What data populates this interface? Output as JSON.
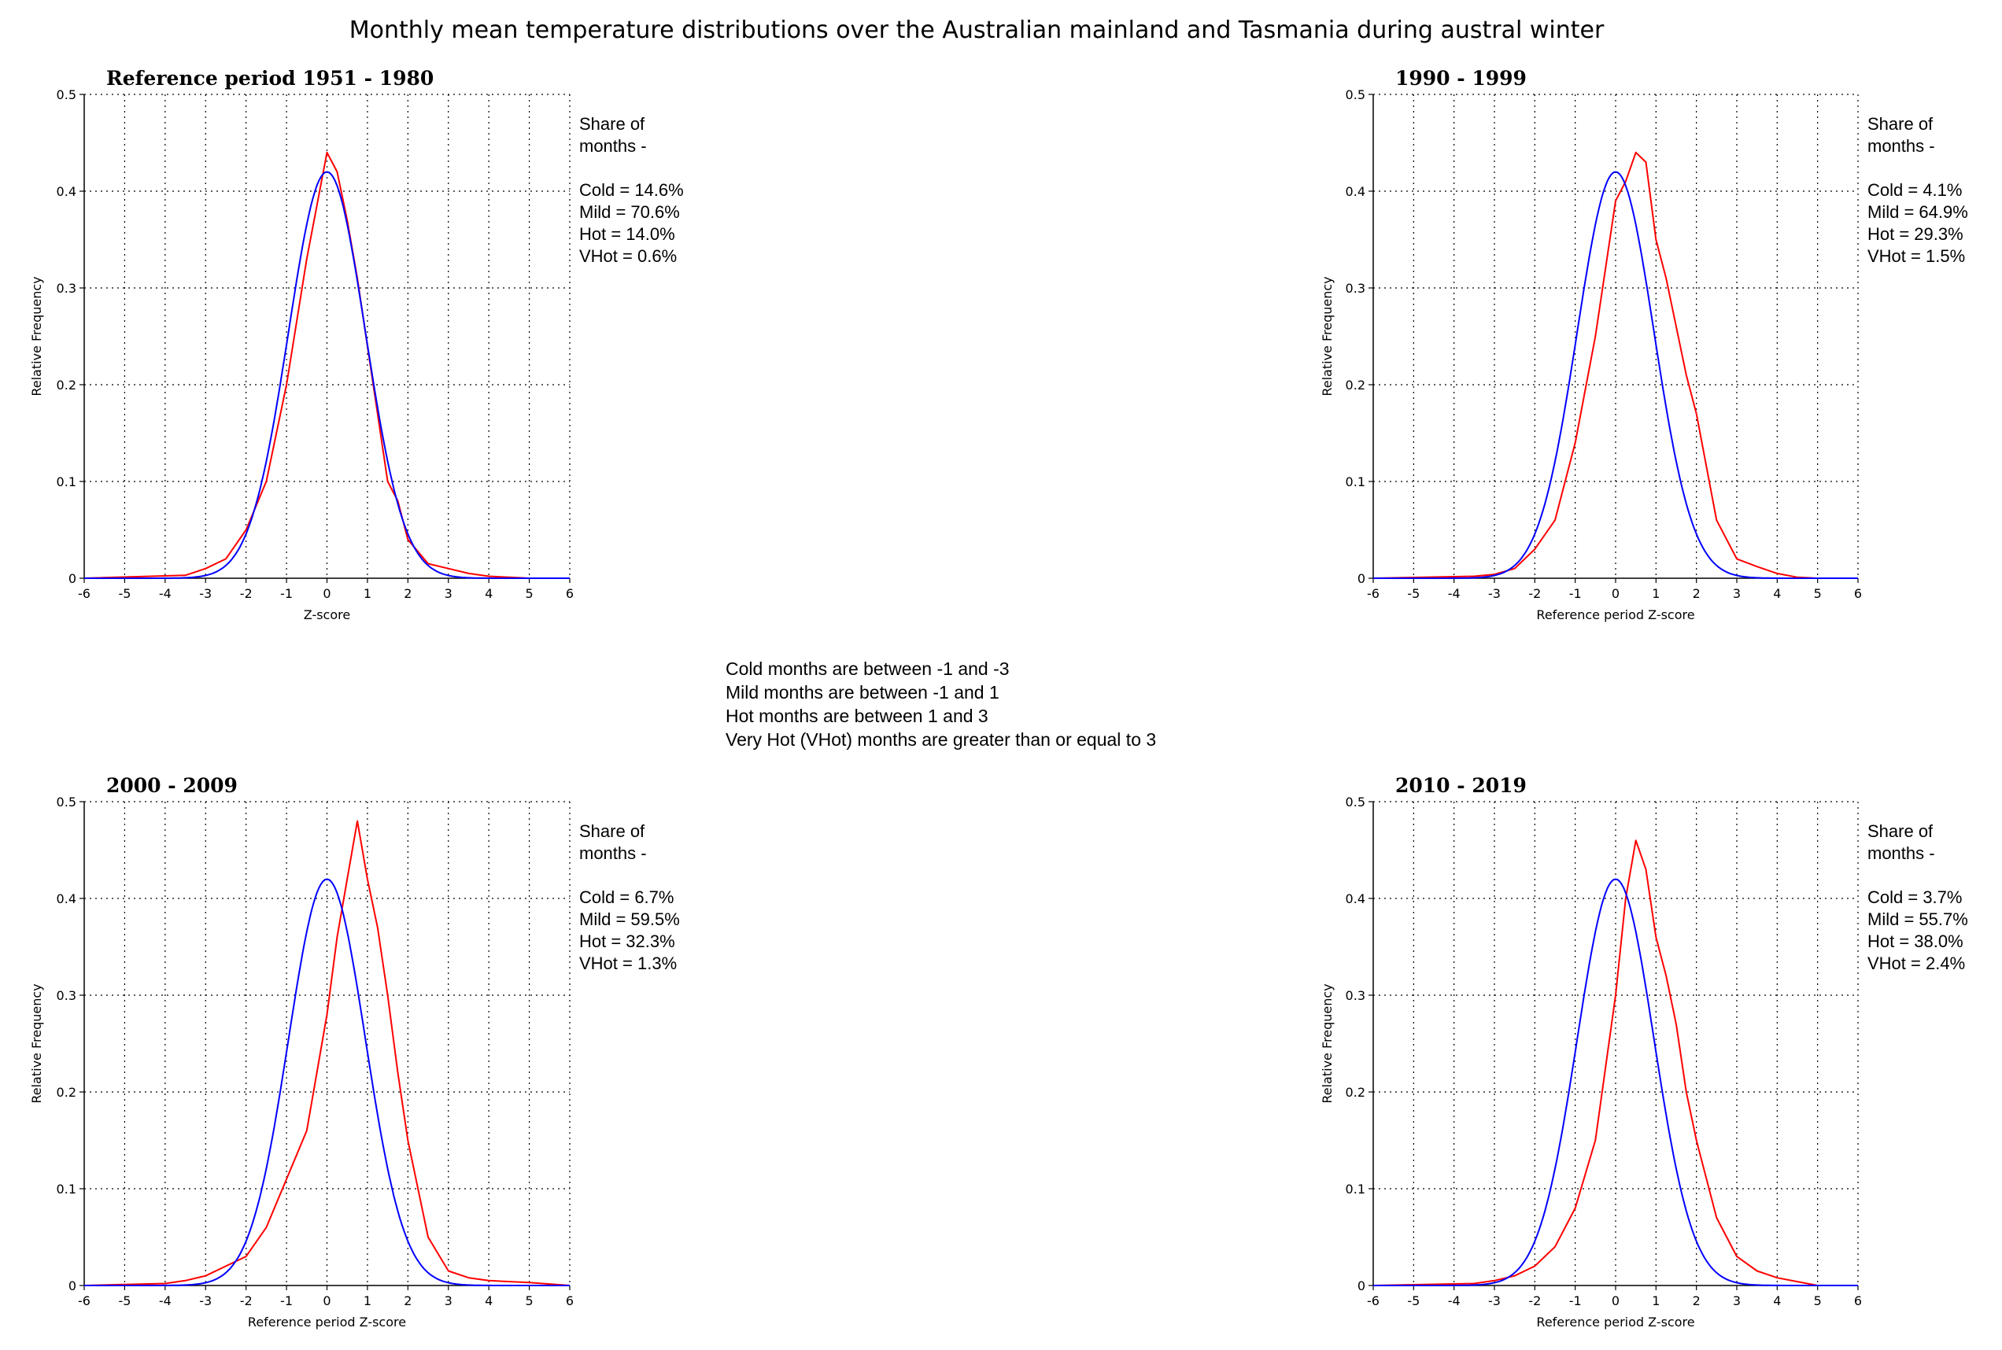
{
  "title": "Monthly mean temperature distributions over the Australian mainland and Tasmania during austral winter",
  "notes": [
    "Cold months are between -1 and -3",
    "Mild months are between -1 and 1",
    "Hot months are between 1 and 3",
    "Very Hot (VHot) months are greater than or equal to 3"
  ],
  "colors": {
    "observed": "#ff0000",
    "reference": "#0000ff",
    "grid": "#000000"
  },
  "chart_data": [
    {
      "type": "line",
      "title": "Reference period 1951 - 1980",
      "xlabel": "Z-score",
      "ylabel": "Relative Frequency",
      "xlim": [
        -6,
        6
      ],
      "ylim": [
        0,
        0.5
      ],
      "xticks": [
        -6,
        -5,
        -4,
        -3,
        -2,
        -1,
        0,
        1,
        2,
        3,
        4,
        5,
        6
      ],
      "yticks": [
        0,
        0.1,
        0.2,
        0.3,
        0.4,
        0.5
      ],
      "ytick_labels": [
        "0",
        "0.1",
        "0.2",
        "0.3",
        "0.4",
        "0.5"
      ],
      "grid": true,
      "side_text": [
        "Share of",
        "months -",
        "",
        "Cold = 14.6%",
        "Mild = 70.6%",
        "Hot = 14.0%",
        "VHot = 0.6%"
      ],
      "series": [
        {
          "color": "#ff0000",
          "x": [
            -6,
            -3.5,
            -3,
            -2.5,
            -2,
            -1.5,
            -1,
            -0.5,
            0,
            0.25,
            0.5,
            0.75,
            1,
            1.25,
            1.5,
            1.75,
            2,
            2.5,
            3,
            3.5,
            4,
            4.5,
            5,
            6
          ],
          "y": [
            0,
            0.003,
            0.01,
            0.02,
            0.05,
            0.1,
            0.2,
            0.33,
            0.44,
            0.42,
            0.37,
            0.31,
            0.24,
            0.17,
            0.1,
            0.08,
            0.04,
            0.015,
            0.01,
            0.005,
            0.002,
            0.001,
            0,
            0
          ]
        },
        {
          "color": "#0000ff",
          "kind": "normal",
          "mean": 0,
          "sd": 0.95
        }
      ]
    },
    {
      "type": "line",
      "title": "1990 - 1999",
      "xlabel": "Reference period Z-score",
      "ylabel": "Relative Frequency",
      "xlim": [
        -6,
        6
      ],
      "ylim": [
        0,
        0.5
      ],
      "xticks": [
        -6,
        -5,
        -4,
        -3,
        -2,
        -1,
        0,
        1,
        2,
        3,
        4,
        5,
        6
      ],
      "yticks": [
        0,
        0.1,
        0.2,
        0.3,
        0.4,
        0.5
      ],
      "ytick_labels": [
        "0",
        "0.1",
        "0.2",
        "0.3",
        "0.4",
        "0.5"
      ],
      "grid": true,
      "side_text": [
        "Share of",
        "months -",
        "",
        "Cold = 4.1%",
        "Mild = 64.9%",
        "Hot = 29.3%",
        "VHot = 1.5%"
      ],
      "series": [
        {
          "color": "#ff0000",
          "x": [
            -6,
            -3.5,
            -3,
            -2.5,
            -2,
            -1.5,
            -1,
            -0.5,
            0,
            0.25,
            0.5,
            0.75,
            1,
            1.25,
            1.5,
            1.75,
            2,
            2.5,
            3,
            3.5,
            4,
            4.5,
            5,
            6
          ],
          "y": [
            0,
            0.002,
            0.004,
            0.01,
            0.03,
            0.06,
            0.14,
            0.25,
            0.39,
            0.41,
            0.44,
            0.43,
            0.35,
            0.31,
            0.26,
            0.21,
            0.17,
            0.06,
            0.02,
            0.012,
            0.005,
            0.001,
            0,
            0
          ]
        },
        {
          "color": "#0000ff",
          "kind": "normal",
          "mean": 0,
          "sd": 0.95
        }
      ]
    },
    {
      "type": "line",
      "title": "2000 - 2009",
      "xlabel": "Reference period Z-score",
      "ylabel": "Relative Frequency",
      "xlim": [
        -6,
        6
      ],
      "ylim": [
        0,
        0.5
      ],
      "xticks": [
        -6,
        -5,
        -4,
        -3,
        -2,
        -1,
        0,
        1,
        2,
        3,
        4,
        5,
        6
      ],
      "yticks": [
        0,
        0.1,
        0.2,
        0.3,
        0.4,
        0.5
      ],
      "ytick_labels": [
        "0",
        "0.1",
        "0.2",
        "0.3",
        "0.4",
        "0.5"
      ],
      "grid": true,
      "side_text": [
        "Share of",
        "months -",
        "",
        "Cold = 6.7%",
        "Mild = 59.5%",
        "Hot = 32.3%",
        "VHot = 1.3%"
      ],
      "series": [
        {
          "color": "#ff0000",
          "x": [
            -6,
            -4,
            -3.5,
            -3,
            -2.5,
            -2,
            -1.5,
            -1,
            -0.5,
            0,
            0.25,
            0.5,
            0.75,
            1,
            1.25,
            1.5,
            1.75,
            2,
            2.5,
            3,
            3.5,
            4,
            5,
            6
          ],
          "y": [
            0,
            0.002,
            0.005,
            0.01,
            0.02,
            0.03,
            0.06,
            0.11,
            0.16,
            0.28,
            0.36,
            0.42,
            0.48,
            0.42,
            0.37,
            0.3,
            0.22,
            0.15,
            0.05,
            0.015,
            0.008,
            0.005,
            0.003,
            0
          ]
        },
        {
          "color": "#0000ff",
          "kind": "normal",
          "mean": 0,
          "sd": 0.95
        }
      ]
    },
    {
      "type": "line",
      "title": "2010 - 2019",
      "xlabel": "Reference period Z-score",
      "ylabel": "Relative Frequency",
      "xlim": [
        -6,
        6
      ],
      "ylim": [
        0,
        0.5
      ],
      "xticks": [
        -6,
        -5,
        -4,
        -3,
        -2,
        -1,
        0,
        1,
        2,
        3,
        4,
        5,
        6
      ],
      "yticks": [
        0,
        0.1,
        0.2,
        0.3,
        0.4,
        0.5
      ],
      "ytick_labels": [
        "0",
        "0.1",
        "0.2",
        "0.3",
        "0.4",
        "0.5"
      ],
      "grid": true,
      "side_text": [
        "Share of",
        "months -",
        "",
        "Cold = 3.7%",
        "Mild = 55.7%",
        "Hot = 38.0%",
        "VHot = 2.4%"
      ],
      "series": [
        {
          "color": "#ff0000",
          "x": [
            -6,
            -3.5,
            -3,
            -2.5,
            -2,
            -1.5,
            -1,
            -0.5,
            0,
            0.25,
            0.5,
            0.75,
            1,
            1.25,
            1.5,
            1.75,
            2,
            2.5,
            3,
            3.5,
            4,
            4.5,
            5,
            6
          ],
          "y": [
            0,
            0.002,
            0.005,
            0.01,
            0.02,
            0.04,
            0.08,
            0.15,
            0.3,
            0.4,
            0.46,
            0.43,
            0.36,
            0.32,
            0.27,
            0.2,
            0.15,
            0.07,
            0.03,
            0.015,
            0.008,
            0.004,
            0,
            0
          ]
        },
        {
          "color": "#0000ff",
          "kind": "normal",
          "mean": 0,
          "sd": 0.95
        }
      ]
    }
  ]
}
